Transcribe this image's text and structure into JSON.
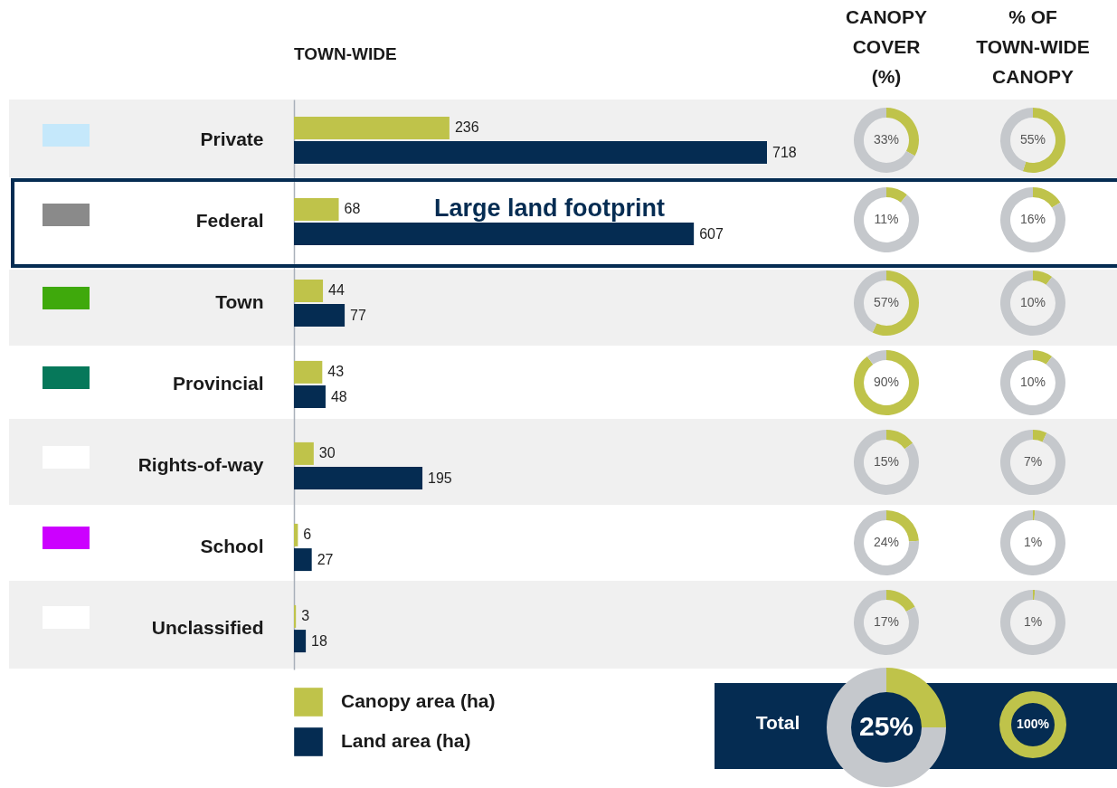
{
  "chart_data": [
    {
      "type": "bar",
      "orientation": "horizontal",
      "title": "TOWN-WIDE",
      "categories": [
        "Private",
        "Federal",
        "Town",
        "Provincial",
        "Rights-of-way",
        "School",
        "Unclassified"
      ],
      "series": [
        {
          "name": "Canopy area (ha)",
          "color": "#bfc34a",
          "values": [
            236,
            68,
            44,
            43,
            30,
            6,
            3
          ]
        },
        {
          "name": "Land area (ha)",
          "color": "#052c52",
          "values": [
            718,
            607,
            77,
            48,
            195,
            27,
            18
          ]
        }
      ],
      "data_labels": true,
      "legend": "bottom",
      "annotations": [
        {
          "text": "Large land footprint",
          "y": "Federal"
        }
      ]
    },
    {
      "type": "donut",
      "title": "CANOPY\nCOVER\n(%)",
      "categories": [
        null,
        null
      ],
      "values": [
        33,
        67
      ],
      "colors": [
        "#bfc34a",
        "#c5c8cc"
      ],
      "value_labels": [
        "33%",
        null
      ]
    },
    {
      "type": "donut",
      "categories": [
        null,
        null
      ],
      "values": [
        11,
        89
      ],
      "colors": [
        "#bfc34a",
        "#c5c8cc"
      ],
      "value_labels": [
        "11%",
        null
      ]
    },
    {
      "type": "donut",
      "categories": [
        null,
        null
      ],
      "values": [
        57,
        43
      ],
      "colors": [
        "#bfc34a",
        "#c5c8cc"
      ],
      "value_labels": [
        "57%",
        null
      ]
    },
    {
      "type": "donut",
      "categories": [
        null,
        null
      ],
      "values": [
        90,
        10
      ],
      "colors": [
        "#bfc34a",
        "#c5c8cc"
      ],
      "value_labels": [
        "90%",
        null
      ]
    },
    {
      "type": "donut",
      "categories": [
        null,
        null
      ],
      "values": [
        15,
        85
      ],
      "colors": [
        "#bfc34a",
        "#c5c8cc"
      ],
      "value_labels": [
        "15%",
        null
      ]
    },
    {
      "type": "donut",
      "categories": [
        null,
        null
      ],
      "values": [
        24,
        76
      ],
      "colors": [
        "#bfc34a",
        "#c5c8cc"
      ],
      "value_labels": [
        "24%",
        null
      ]
    },
    {
      "type": "donut",
      "categories": [
        null,
        null
      ],
      "values": [
        17,
        83
      ],
      "colors": [
        "#bfc34a",
        "#c5c8cc"
      ],
      "value_labels": [
        "17%",
        null
      ]
    },
    {
      "type": "donut",
      "title": "% OF\nTOWN-WIDE\nCANOPY",
      "categories": [
        null,
        null
      ],
      "values": [
        55,
        45
      ],
      "colors": [
        "#bfc34a",
        "#c5c8cc"
      ],
      "value_labels": [
        "55%",
        null
      ]
    },
    {
      "type": "donut",
      "categories": [
        null,
        null
      ],
      "values": [
        16,
        84
      ],
      "colors": [
        "#bfc34a",
        "#c5c8cc"
      ],
      "value_labels": [
        "16%",
        null
      ]
    },
    {
      "type": "donut",
      "categories": [
        null,
        null
      ],
      "values": [
        10,
        90
      ],
      "colors": [
        "#bfc34a",
        "#c5c8cc"
      ],
      "value_labels": [
        "10%",
        null
      ]
    },
    {
      "type": "donut",
      "categories": [
        null,
        null
      ],
      "values": [
        10,
        90
      ],
      "colors": [
        "#bfc34a",
        "#c5c8cc"
      ],
      "value_labels": [
        "10%",
        null
      ]
    },
    {
      "type": "donut",
      "categories": [
        null,
        null
      ],
      "values": [
        7,
        93
      ],
      "colors": [
        "#bfc34a",
        "#c5c8cc"
      ],
      "value_labels": [
        "7%",
        null
      ]
    },
    {
      "type": "donut",
      "categories": [
        null,
        null
      ],
      "values": [
        1,
        99
      ],
      "colors": [
        "#bfc34a",
        "#c5c8cc"
      ],
      "value_labels": [
        "1%",
        null
      ]
    },
    {
      "type": "donut",
      "categories": [
        null,
        null
      ],
      "values": [
        1,
        99
      ],
      "colors": [
        "#bfc34a",
        "#c5c8cc"
      ],
      "value_labels": [
        "1%",
        null
      ]
    },
    {
      "type": "donut",
      "categories": [
        null,
        null
      ],
      "values": [
        25,
        75
      ],
      "colors": [
        "#bfc34a",
        "#c5c8cc"
      ],
      "value_labels": [
        "25%",
        null
      ],
      "annotations": [
        "Total"
      ]
    },
    {
      "type": "donut",
      "categories": [
        null
      ],
      "values": [
        100
      ],
      "colors": [
        "#bfc34a"
      ],
      "value_labels": [
        "100%"
      ]
    }
  ]
}
